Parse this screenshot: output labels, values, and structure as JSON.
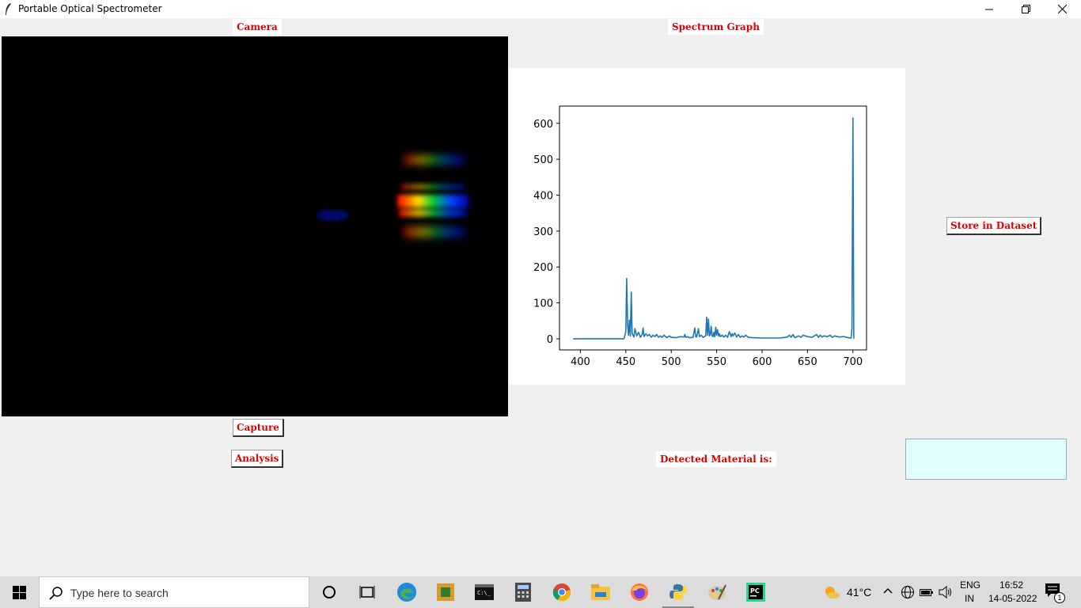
{
  "window": {
    "title": "Portable Optical Spectrometer"
  },
  "labels": {
    "camera": "Camera",
    "spectrum_graph": "Spectrum Graph",
    "detected_material": "Detected Material is:"
  },
  "buttons": {
    "capture": "Capture",
    "analysis": "Analysis",
    "store": "Store in Dataset"
  },
  "result": {
    "value": ""
  },
  "colors": {
    "label_text": "#e00000",
    "result_bg": "#e0ffff",
    "line": "#1f77b4"
  },
  "chart_data": {
    "type": "line",
    "title": "",
    "xlabel": "",
    "ylabel": "",
    "xlim": [
      377,
      715
    ],
    "ylim": [
      -31,
      648
    ],
    "xticks": [
      400,
      450,
      500,
      550,
      600,
      650,
      700
    ],
    "yticks": [
      0,
      100,
      200,
      300,
      400,
      500,
      600
    ],
    "series": [
      {
        "x": [
          392,
          448,
          450,
          451,
          452,
          453,
          454,
          455,
          456,
          457,
          459,
          460,
          462,
          464,
          466,
          468,
          469,
          470,
          472,
          474,
          476,
          478,
          480,
          482,
          484,
          486,
          488,
          490,
          492,
          495,
          498,
          500,
          505,
          510,
          514,
          515,
          516,
          518,
          520,
          524,
          526,
          527,
          528,
          530,
          531,
          533,
          535,
          538,
          539,
          540,
          541,
          542,
          543,
          544,
          545,
          546,
          547,
          548,
          549,
          550,
          551,
          552,
          553,
          554,
          556,
          558,
          560,
          562,
          564,
          566,
          567,
          568,
          570,
          572,
          574,
          576,
          578,
          580,
          582,
          585,
          590,
          600,
          620,
          628,
          630,
          632,
          634,
          636,
          640,
          643,
          645,
          650,
          655,
          660,
          662,
          664,
          666,
          668,
          672,
          675,
          677,
          680,
          685,
          690,
          695,
          698,
          699,
          700,
          701
        ],
        "y": [
          0,
          0,
          20,
          168,
          40,
          10,
          52,
          8,
          130,
          15,
          5,
          28,
          8,
          18,
          4,
          12,
          30,
          6,
          14,
          8,
          12,
          4,
          10,
          6,
          12,
          4,
          8,
          4,
          10,
          3,
          8,
          4,
          3,
          6,
          5,
          12,
          4,
          6,
          3,
          4,
          30,
          6,
          5,
          28,
          6,
          10,
          4,
          8,
          60,
          10,
          55,
          8,
          12,
          35,
          8,
          6,
          18,
          6,
          32,
          10,
          25,
          8,
          14,
          6,
          10,
          5,
          10,
          4,
          20,
          6,
          14,
          8,
          16,
          5,
          12,
          4,
          8,
          5,
          10,
          4,
          3,
          2,
          2,
          5,
          10,
          4,
          12,
          3,
          8,
          4,
          10,
          6,
          4,
          12,
          4,
          10,
          5,
          8,
          6,
          10,
          4,
          8,
          5,
          6,
          3,
          2,
          30,
          615,
          0
        ]
      }
    ]
  },
  "taskbar": {
    "search_placeholder": "Type here to search",
    "weather": "41°C",
    "lang_line1": "ENG",
    "lang_line2": "IN",
    "time": "16:52",
    "date": "14-05-2022",
    "notification_count": "1"
  }
}
